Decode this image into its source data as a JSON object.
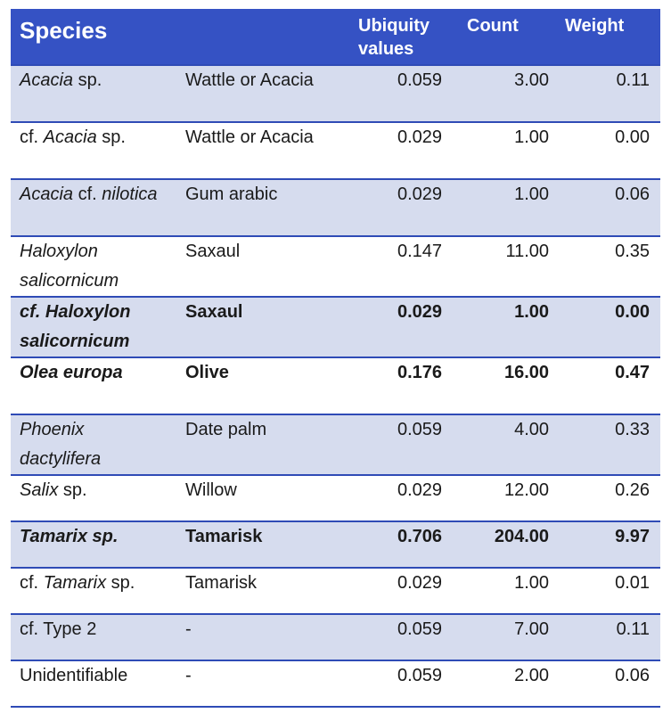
{
  "header": {
    "species": "Species",
    "ubiquity": "Ubiquity values",
    "count": "Count",
    "weight": "Weight"
  },
  "rows": [
    {
      "species_prefix": "",
      "species_italic": "Acacia",
      "species_suffix": " sp.",
      "common": "Wattle or Acacia",
      "ubiquity": "0.059",
      "count": "3.00",
      "weight": "0.11",
      "bold": false
    },
    {
      "species_prefix": "cf. ",
      "species_italic": "Acacia",
      "species_suffix": " sp.",
      "common": "Wattle or Acacia",
      "ubiquity": "0.029",
      "count": "1.00",
      "weight": "0.00",
      "bold": false
    },
    {
      "species_prefix": "",
      "species_italic": "Acacia",
      "species_suffix": " cf. ",
      "species_italic2": "nilotica",
      "common": "Gum arabic",
      "ubiquity": "0.029",
      "count": "1.00",
      "weight": "0.06",
      "bold": false
    },
    {
      "species_prefix": "",
      "species_italic": "Haloxylon salicornicum",
      "species_suffix": "",
      "common": "Saxaul",
      "ubiquity": "0.147",
      "count": "11.00",
      "weight": "0.35",
      "bold": false
    },
    {
      "species_prefix": "",
      "species_italic": "cf. Haloxylon salicornicum",
      "species_suffix": "",
      "common": "Saxaul",
      "ubiquity": "0.029",
      "count": "1.00",
      "weight": "0.00",
      "bold": true
    },
    {
      "species_prefix": "",
      "species_italic": "Olea europa",
      "species_suffix": "",
      "common": "Olive",
      "ubiquity": "0.176",
      "count": "16.00",
      "weight": "0.47",
      "bold": true
    },
    {
      "species_prefix": "",
      "species_italic": "Phoenix dactylifera",
      "species_suffix": "",
      "common": "Date palm",
      "ubiquity": "0.059",
      "count": "4.00",
      "weight": "0.33",
      "bold": false
    },
    {
      "species_prefix": "",
      "species_italic": "Salix",
      "species_suffix": " sp.",
      "common": "Willow",
      "ubiquity": "0.029",
      "count": "12.00",
      "weight": "0.26",
      "bold": false
    },
    {
      "species_prefix": "",
      "species_italic": "Tamarix sp.",
      "species_suffix": "",
      "common": "Tamarisk",
      "ubiquity": "0.706",
      "count": "204.00",
      "weight": "9.97",
      "bold": true
    },
    {
      "species_prefix": "cf. ",
      "species_italic": "Tamarix",
      "species_suffix": " sp.",
      "common": "Tamarisk",
      "ubiquity": "0.029",
      "count": "1.00",
      "weight": "0.01",
      "bold": false
    },
    {
      "species_prefix": "cf. Type 2",
      "species_italic": "",
      "species_suffix": "",
      "common": "-",
      "ubiquity": "0.059",
      "count": "7.00",
      "weight": "0.11",
      "bold": false
    },
    {
      "species_prefix": "Unidentifiable",
      "species_italic": "",
      "species_suffix": "",
      "common": "-",
      "ubiquity": "0.059",
      "count": "2.00",
      "weight": "0.06",
      "bold": false
    }
  ],
  "colors": {
    "header_bg": "#3552c4",
    "row_shade": "#d6dcee",
    "rule": "#2f4bb6"
  }
}
